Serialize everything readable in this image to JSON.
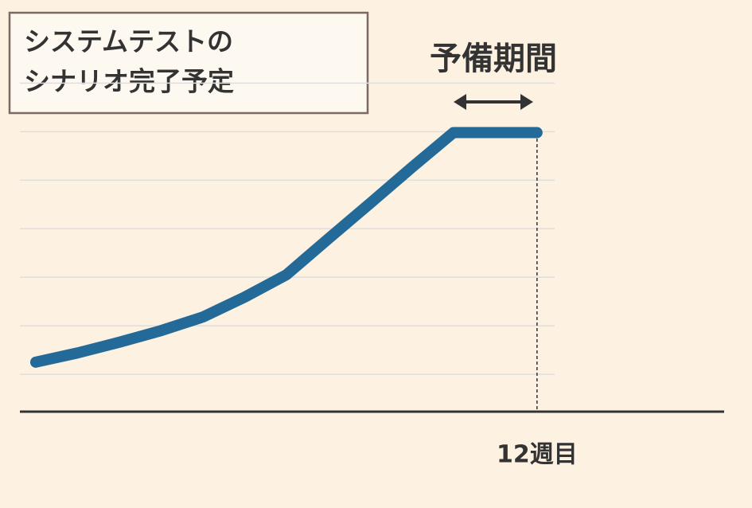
{
  "chart_data": {
    "type": "line",
    "title": [
      "システムテストの",
      "シナリオ完了予定"
    ],
    "annotation": "予備期間",
    "x": [
      0,
      1,
      2,
      3,
      4,
      5,
      6,
      7,
      8,
      9,
      10,
      12
    ],
    "series": [
      {
        "name": null,
        "color": "#236a98",
        "values": [
          1.25,
          1.44,
          1.66,
          1.9,
          2.18,
          2.59,
          3.05,
          3.79,
          4.52,
          5.26,
          5.98,
          5.98
        ]
      }
    ],
    "xlim": [
      -0.38,
      16.48
    ],
    "xticks": [
      {
        "value": 12,
        "label": "12週目"
      }
    ],
    "ylim": [
      0.23,
      7.4
    ],
    "yticks": [
      1,
      2,
      3,
      4,
      5,
      6,
      7
    ],
    "grid": true
  }
}
